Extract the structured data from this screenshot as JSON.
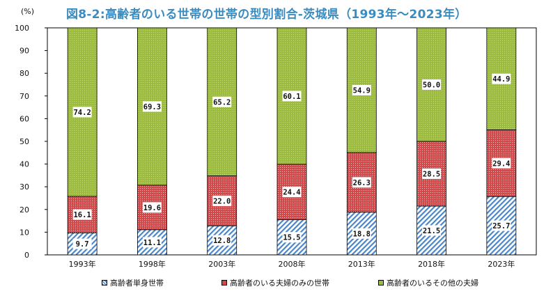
{
  "title": "図8-2:高齢者のいる世帯の世帯の型別割合-茨城県（1993年～2023年）",
  "chart_data": {
    "type": "bar",
    "stacked": true,
    "title": "図8-2:高齢者のいる世帯の世帯の型別割合-茨城県（1993年～2023年）",
    "ylabel": "(%)",
    "xlabel": "",
    "ylim": [
      0,
      100
    ],
    "yticks": [
      0,
      10,
      20,
      30,
      40,
      50,
      60,
      70,
      80,
      90,
      100
    ],
    "grid": false,
    "legend_position": "bottom",
    "categories": [
      "1993年",
      "1998年",
      "2003年",
      "2008年",
      "2013年",
      "2018年",
      "2023年"
    ],
    "series": [
      {
        "name": "高齢者単身世帯",
        "values": [
          9.7,
          11.1,
          12.8,
          15.5,
          18.8,
          21.5,
          25.7
        ],
        "color": "#4a86c8"
      },
      {
        "name": "高齢者のいる夫婦のみの世帯",
        "values": [
          16.1,
          19.6,
          22.0,
          24.4,
          26.3,
          28.5,
          29.4
        ],
        "color": "#d0494b"
      },
      {
        "name": "高齢者のいるその他の夫婦",
        "values": [
          74.2,
          69.3,
          65.2,
          60.1,
          54.9,
          50.0,
          44.9
        ],
        "color": "#9dbb3f"
      }
    ]
  }
}
